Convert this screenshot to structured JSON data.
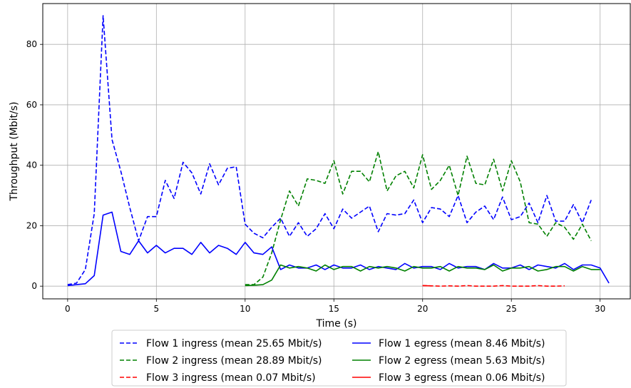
{
  "chart_data": {
    "type": "line",
    "title": "",
    "xlabel": "Time (s)",
    "ylabel": "Throughput (Mbit/s)",
    "xlim": [
      -1.4,
      31.7
    ],
    "ylim": [
      -4.2,
      93.5
    ],
    "xticks": [
      0,
      5,
      10,
      15,
      20,
      25,
      30
    ],
    "yticks": [
      0,
      20,
      40,
      60,
      80
    ],
    "grid": true,
    "legend_position": "below plot",
    "series": [
      {
        "name": "Flow 1 ingress (mean 25.65 Mbit/s)",
        "color": "#0000ff",
        "style": "dashed",
        "x": [
          0,
          0.5,
          1,
          1.5,
          2,
          2.5,
          3,
          3.5,
          4,
          4.5,
          5,
          5.5,
          6,
          6.5,
          7,
          7.5,
          8,
          8.5,
          9,
          9.5,
          10,
          10.5,
          11,
          11.5,
          12,
          12.5,
          13,
          13.5,
          14,
          14.5,
          15,
          15.5,
          16,
          16.5,
          17,
          17.5,
          18,
          18.5,
          19,
          19.5,
          20,
          20.5,
          21,
          21.5,
          22,
          22.5,
          23,
          23.5,
          24,
          24.5,
          25,
          25.5,
          26,
          26.5,
          27,
          27.5,
          28,
          28.5,
          29,
          29.5
        ],
        "y": [
          0.5,
          1,
          5.5,
          24,
          89.5,
          48.5,
          38,
          26,
          15,
          23,
          23,
          35,
          29,
          41,
          37.5,
          30.5,
          40.5,
          33.5,
          39,
          39.5,
          20.5,
          17.5,
          16,
          19.5,
          22.5,
          16.5,
          21,
          16.5,
          19,
          24,
          19,
          25.5,
          22.5,
          24.5,
          26.5,
          18,
          24,
          23.5,
          24,
          28.5,
          21,
          26,
          25.5,
          23,
          30,
          21,
          24.5,
          26.5,
          22,
          29.5,
          22,
          23,
          27.5,
          21,
          30,
          21.5,
          21.5,
          27,
          21,
          28.5
        ]
      },
      {
        "name": "Flow 2 ingress (mean 28.89 Mbit/s)",
        "color": "#008000",
        "style": "dashed",
        "x": [
          10,
          10.5,
          11,
          11.5,
          12,
          12.5,
          13,
          13.5,
          14,
          14.5,
          15,
          15.5,
          16,
          16.5,
          17,
          17.5,
          18,
          18.5,
          19,
          19.5,
          20,
          20.5,
          21,
          21.5,
          22,
          22.5,
          23,
          23.5,
          24,
          24.5,
          25,
          25.5,
          26,
          26.5,
          27,
          27.5,
          28,
          28.5,
          29,
          29.5
        ],
        "y": [
          0.5,
          0.5,
          3,
          11,
          22,
          31.5,
          26.5,
          35.5,
          35,
          34,
          41.5,
          30.5,
          38,
          38,
          34.5,
          44.5,
          31.5,
          36.5,
          38,
          32.5,
          43.5,
          32,
          35,
          40,
          30,
          43,
          34,
          33.5,
          42,
          31.5,
          41.5,
          34.5,
          21,
          20.5,
          16.5,
          21,
          19.5,
          15.5,
          20.5,
          15
        ]
      },
      {
        "name": "Flow 3 ingress (mean 0.07 Mbit/s)",
        "color": "#ff0000",
        "style": "dashed",
        "x": [
          20,
          20.5,
          21,
          21.5,
          22,
          22.5,
          23,
          23.5,
          24,
          24.5,
          25,
          25.5,
          26,
          26.5,
          27,
          27.5,
          28
        ],
        "y": [
          0.2,
          0.1,
          0,
          0.1,
          0,
          0.2,
          0,
          0,
          0,
          0.2,
          0,
          0,
          0,
          0.2,
          0,
          0,
          0.1
        ]
      },
      {
        "name": "Flow 1 egress (mean 8.46 Mbit/s)",
        "color": "#0000ff",
        "style": "solid",
        "x": [
          0,
          0.5,
          1,
          1.5,
          2,
          2.5,
          3,
          3.5,
          4,
          4.5,
          5,
          5.5,
          6,
          6.5,
          7,
          7.5,
          8,
          8.5,
          9,
          9.5,
          10,
          10.5,
          11,
          11.5,
          12,
          12.5,
          13,
          13.5,
          14,
          14.5,
          15,
          15.5,
          16,
          16.5,
          17,
          17.5,
          18,
          18.5,
          19,
          19.5,
          20,
          20.5,
          21,
          21.5,
          22,
          22.5,
          23,
          23.5,
          24,
          24.5,
          25,
          25.5,
          26,
          26.5,
          27,
          27.5,
          28,
          28.5,
          29,
          29.5,
          30,
          30.5
        ],
        "y": [
          0.2,
          0.5,
          0.8,
          3.5,
          23.5,
          24.5,
          11.5,
          10.5,
          15,
          11,
          13.5,
          11,
          12.5,
          12.5,
          10.5,
          14.5,
          11,
          13.5,
          12.5,
          10.5,
          14.5,
          11,
          10.5,
          13,
          5.5,
          7,
          6,
          6,
          7,
          5.5,
          7,
          6,
          6,
          7,
          5.5,
          6.5,
          6,
          5.5,
          7.5,
          6,
          6.5,
          6.5,
          5.5,
          7.5,
          6,
          6.5,
          6.5,
          5.5,
          7.5,
          6,
          6,
          7,
          5.5,
          7,
          6.5,
          6,
          7.5,
          5.5,
          7,
          7,
          6,
          1
        ]
      },
      {
        "name": "Flow 2 egress (mean 5.63 Mbit/s)",
        "color": "#008000",
        "style": "solid",
        "x": [
          10,
          10.5,
          11,
          11.5,
          12,
          12.5,
          13,
          13.5,
          14,
          14.5,
          15,
          15.5,
          16,
          16.5,
          17,
          17.5,
          18,
          18.5,
          19,
          19.5,
          20,
          20.5,
          21,
          21.5,
          22,
          22.5,
          23,
          23.5,
          24,
          24.5,
          25,
          25.5,
          26,
          26.5,
          27,
          27.5,
          28,
          28.5,
          29,
          29.5,
          30
        ],
        "y": [
          0.2,
          0.3,
          0.5,
          2,
          7,
          6,
          6.5,
          6,
          5,
          7,
          5.5,
          6.5,
          6.5,
          5,
          6.5,
          6,
          6.5,
          6,
          5,
          6.5,
          6,
          6,
          6.5,
          5,
          6.5,
          6,
          6,
          5.5,
          7,
          5,
          6,
          6,
          6.5,
          5,
          5.5,
          6.5,
          6.5,
          5,
          6.5,
          5.5,
          5.5
        ]
      },
      {
        "name": "Flow 3 egress (mean 0.06 Mbit/s)",
        "color": "#ff0000",
        "style": "solid",
        "x": [
          20,
          20.5
        ],
        "y": [
          0.2,
          0.1
        ]
      }
    ]
  }
}
